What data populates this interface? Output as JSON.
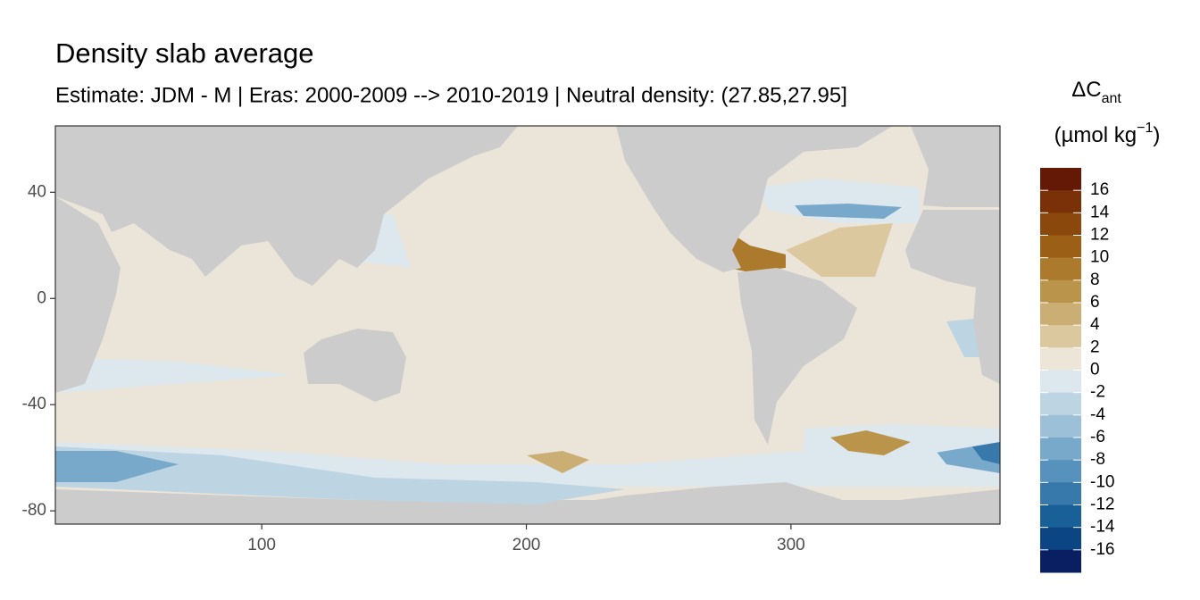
{
  "chart_data": {
    "type": "map",
    "title": "Density slab average",
    "subtitle": "Estimate: JDM - M | Eras: 2000-2009 --> 2010-2019 | Neutral density: (27.85,27.95]",
    "xlim": [
      22,
      379
    ],
    "xticks": [
      100,
      200,
      300
    ],
    "ylim": [
      -85,
      65
    ],
    "yticks": [
      40,
      0,
      -40,
      -80
    ],
    "land_color": "#cccccc",
    "legend": {
      "symbol": "ΔC",
      "subscript": "ant",
      "unit": "(µmol kg",
      "superscript": "−1",
      "unit_end": ")",
      "breaks": [
        16,
        14,
        12,
        10,
        8,
        6,
        4,
        2,
        0,
        -2,
        -4,
        -6,
        -8,
        -10,
        -12,
        -14,
        -16
      ],
      "colors": [
        "#631906",
        "#7a3108",
        "#8b480c",
        "#9b5f16",
        "#ab7a2d",
        "#bb944c",
        "#cbae74",
        "#dcc89f",
        "#ece5d8",
        "#dde7ee",
        "#bdd4e3",
        "#9bc0d7",
        "#79a9ca",
        "#5792bc",
        "#3679aa",
        "#195f98",
        "#0b4584",
        "#0a1e62"
      ]
    }
  }
}
